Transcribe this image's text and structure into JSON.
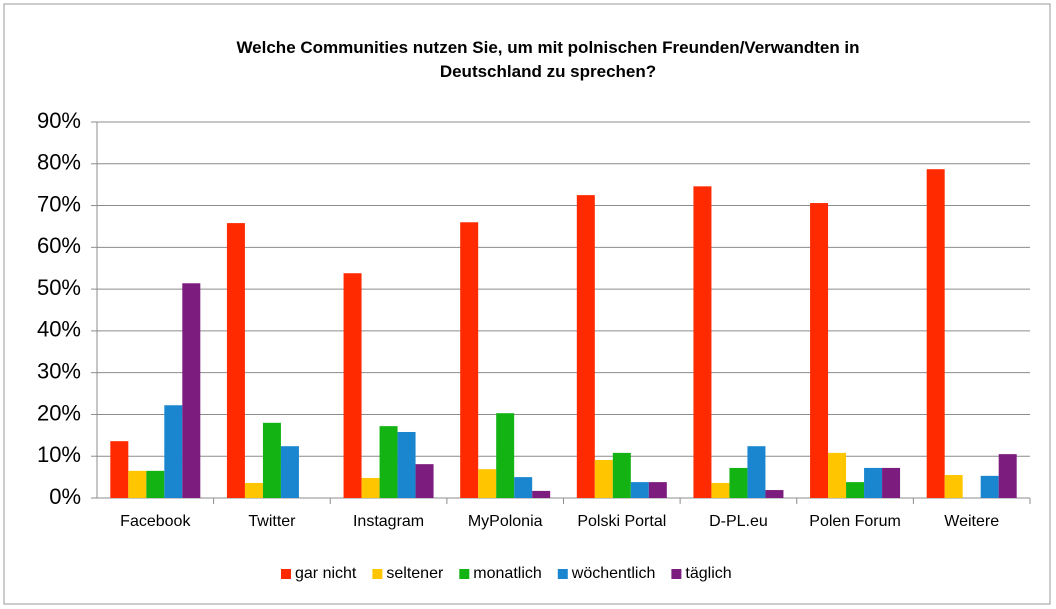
{
  "chart_data": {
    "type": "bar",
    "title": "Welche Communities nutzen Sie, um mit polnischen Freunden/Verwandten in\nDeutschland zu sprechen?",
    "categories": [
      "Facebook",
      "Twitter",
      "Instagram",
      "MyPolonia",
      "Polski Portal",
      "D-PL.eu",
      "Polen Forum",
      "Weitere"
    ],
    "series": [
      {
        "name": "gar nicht",
        "color": "#ff2a00",
        "values": [
          13.6,
          65.8,
          53.8,
          66,
          72.5,
          74.6,
          70.6,
          78.7
        ]
      },
      {
        "name": "seltener",
        "color": "#ffc600",
        "values": [
          6.5,
          3.6,
          4.8,
          6.9,
          9.1,
          3.6,
          10.8,
          5.5
        ]
      },
      {
        "name": "monatlich",
        "color": "#12b312",
        "values": [
          6.5,
          18,
          17.2,
          20.3,
          10.8,
          7.2,
          3.8,
          0
        ]
      },
      {
        "name": "wöchentlich",
        "color": "#1a86d0",
        "values": [
          22.2,
          12.4,
          15.8,
          5,
          3.8,
          12.4,
          7.2,
          5.3
        ]
      },
      {
        "name": "täglich",
        "color": "#7b1c7e",
        "values": [
          51.4,
          0,
          8.1,
          1.7,
          3.8,
          1.9,
          7.2,
          10.5
        ]
      }
    ],
    "ylim": [
      0,
      90
    ],
    "yticks": [
      {
        "value": 0,
        "label": "0%"
      },
      {
        "value": 10,
        "label": "10%"
      },
      {
        "value": 20,
        "label": "20%"
      },
      {
        "value": 30,
        "label": "30%"
      },
      {
        "value": 40,
        "label": "40%"
      },
      {
        "value": 50,
        "label": "50%"
      },
      {
        "value": 60,
        "label": "60%"
      },
      {
        "value": 70,
        "label": "70%"
      },
      {
        "value": 80,
        "label": "80%"
      },
      {
        "value": 90,
        "label": "90%"
      }
    ],
    "grid": true,
    "legend": "bottom"
  }
}
